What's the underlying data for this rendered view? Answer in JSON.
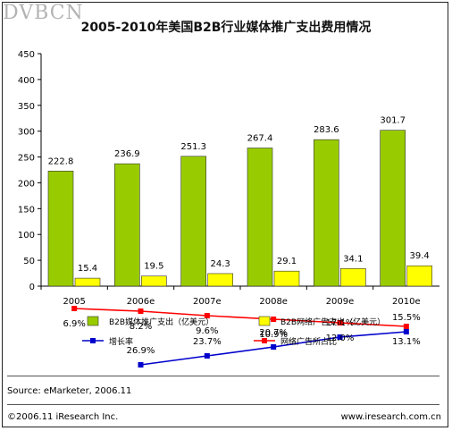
{
  "header": {
    "watermark": "DVBCN",
    "title": "2005-2010年美国B2B行业媒体推广支出费用情况"
  },
  "footer": {
    "source": "Source: eMarketer, 2006.11",
    "copyright": "©2006.11 iResearch Inc.",
    "website": "www.iresearch.com.cn"
  },
  "colors": {
    "bar_green": "#99cc00",
    "bar_yellow": "#ffff00",
    "line_blue": "#0000cc",
    "line_red": "#ff0000"
  },
  "chart_data": {
    "type": "bar",
    "title": "2005-2010年美国B2B行业媒体推广支出费用情况",
    "categories": [
      "2005",
      "2006e",
      "2007e",
      "2008e",
      "2009e",
      "2010e"
    ],
    "ylim": [
      0,
      450
    ],
    "yticks": [
      0,
      50,
      100,
      150,
      200,
      250,
      300,
      350,
      400,
      450
    ],
    "grid": false,
    "legend_position": "bottom",
    "series": [
      {
        "name": "B2B媒体推广支出（亿美元）",
        "kind": "bar",
        "color": "#99cc00",
        "values": [
          222.8,
          236.9,
          251.3,
          267.4,
          283.6,
          301.7
        ],
        "labels": [
          "222.8",
          "236.9",
          "251.3",
          "267.4",
          "283.6",
          "301.7"
        ]
      },
      {
        "name": "B2B网络广告支出（亿美元）",
        "kind": "bar",
        "color": "#ffff00",
        "values": [
          15.4,
          19.5,
          24.3,
          29.1,
          34.1,
          39.4
        ],
        "labels": [
          "15.4",
          "19.5",
          "24.3",
          "29.1",
          "34.1",
          "39.4"
        ]
      },
      {
        "name": "增长率",
        "kind": "line",
        "color": "#0000cc",
        "values": [
          null,
          26.9,
          23.7,
          20.7,
          17.1,
          15.5
        ],
        "labels": [
          "",
          "26.9%",
          "23.7%",
          "20.7%",
          "17.1%",
          "15.5%"
        ],
        "plot_y": [
          null,
          408,
          398,
          388,
          377,
          371
        ]
      },
      {
        "name": "网络广告所占比",
        "kind": "line",
        "color": "#ff0000",
        "values": [
          6.9,
          8.2,
          9.6,
          10.9,
          12.0,
          13.1
        ],
        "labels": [
          "6.9%",
          "8.2%",
          "9.6%",
          "10.9%",
          "12.0%",
          "13.1%"
        ],
        "plot_y": [
          345,
          348,
          353,
          357,
          361,
          365
        ]
      }
    ]
  }
}
